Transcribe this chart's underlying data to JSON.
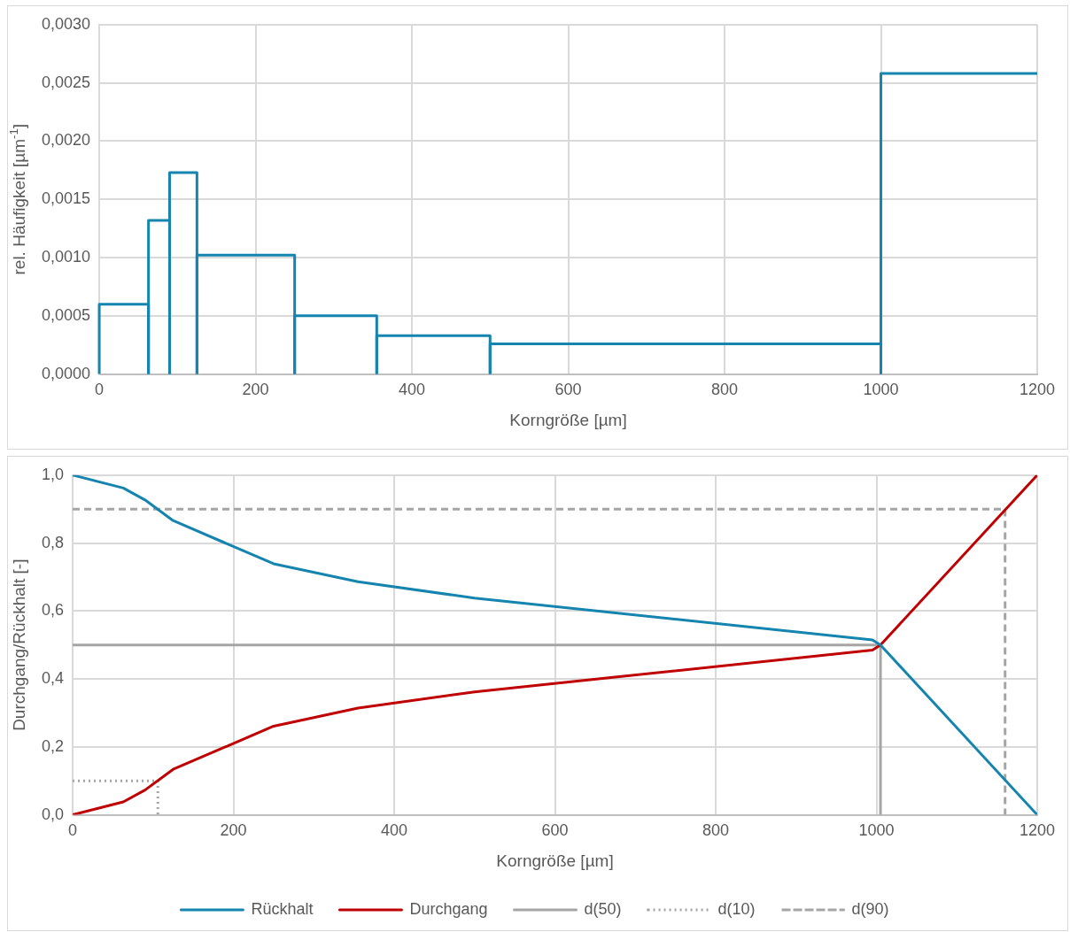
{
  "chart_data": [
    {
      "type": "histogram",
      "bins": [
        0,
        63,
        90,
        125,
        250,
        355,
        500,
        1000,
        1200
      ],
      "values": [
        0.0006,
        0.00132,
        0.00173,
        0.00102,
        0.0005,
        0.00033,
        0.00026,
        0.00258
      ],
      "color": "#1584af",
      "xlabel": "Korngröße [µm]",
      "ylabel": "rel. Häufigkeit [µm$^{-1}$]",
      "xlim": [
        0,
        1200
      ],
      "xticks": [
        0,
        200,
        400,
        600,
        800,
        1000,
        1200
      ],
      "ylim": [
        0,
        0.003
      ],
      "yticks": [
        {
          "value": 0,
          "label": "0,0000"
        },
        {
          "value": 0.0005,
          "label": "0,0005"
        },
        {
          "value": 0.001,
          "label": "0,0010"
        },
        {
          "value": 0.0015,
          "label": "0,0015"
        },
        {
          "value": 0.002,
          "label": "0,0020"
        },
        {
          "value": 0.0025,
          "label": "0,0025"
        },
        {
          "value": 0.003,
          "label": "0,0030"
        }
      ],
      "grid": true,
      "legend": false
    },
    {
      "type": "line",
      "xlabel": "Korngröße [µm]",
      "ylabel": "Durchgang/Rückhalt [-]",
      "xlim": [
        0,
        1200
      ],
      "xticks": [
        0,
        200,
        400,
        600,
        800,
        1000,
        1200
      ],
      "ylim": [
        0,
        1
      ],
      "yticks": [
        {
          "value": 0,
          "label": "0,0"
        },
        {
          "value": 0.2,
          "label": "0,2"
        },
        {
          "value": 0.4,
          "label": "0,4"
        },
        {
          "value": 0.6,
          "label": "0,6"
        },
        {
          "value": 0.8,
          "label": "0,8"
        },
        {
          "value": 1,
          "label": "1,0"
        }
      ],
      "grid": true,
      "legend": "bottom",
      "marker": "none",
      "series": [
        {
          "name": "Rückhalt",
          "color": "#1584af",
          "line_style": "solid",
          "x": [
            0,
            63,
            90,
            125,
            250,
            355,
            500,
            995,
            1005,
            1200
          ],
          "values": [
            1,
            0.962,
            0.927,
            0.866,
            0.739,
            0.686,
            0.638,
            0.515,
            0.5,
            0
          ]
        },
        {
          "name": "Durchgang",
          "color": "#c00000",
          "line_style": "solid",
          "x": [
            0,
            63,
            90,
            125,
            250,
            355,
            500,
            995,
            1005,
            1200
          ],
          "values": [
            0,
            0.038,
            0.073,
            0.134,
            0.261,
            0.314,
            0.362,
            0.485,
            0.5,
            1
          ]
        },
        {
          "name": "d(50)",
          "color": "#a5a5a5",
          "line_style": "solid",
          "x": [
            0,
            1005,
            1005
          ],
          "values": [
            0.5,
            0.5,
            0
          ]
        },
        {
          "name": "d(10)",
          "color": "#a5a5a5",
          "line_style": "dotted",
          "x": [
            0,
            106,
            106
          ],
          "values": [
            0.1,
            0.1,
            0
          ]
        },
        {
          "name": "d(90)",
          "color": "#a5a5a5",
          "line_style": "dashed",
          "x": [
            0,
            1160,
            1160
          ],
          "values": [
            0.9,
            0.9,
            0
          ]
        }
      ]
    }
  ]
}
